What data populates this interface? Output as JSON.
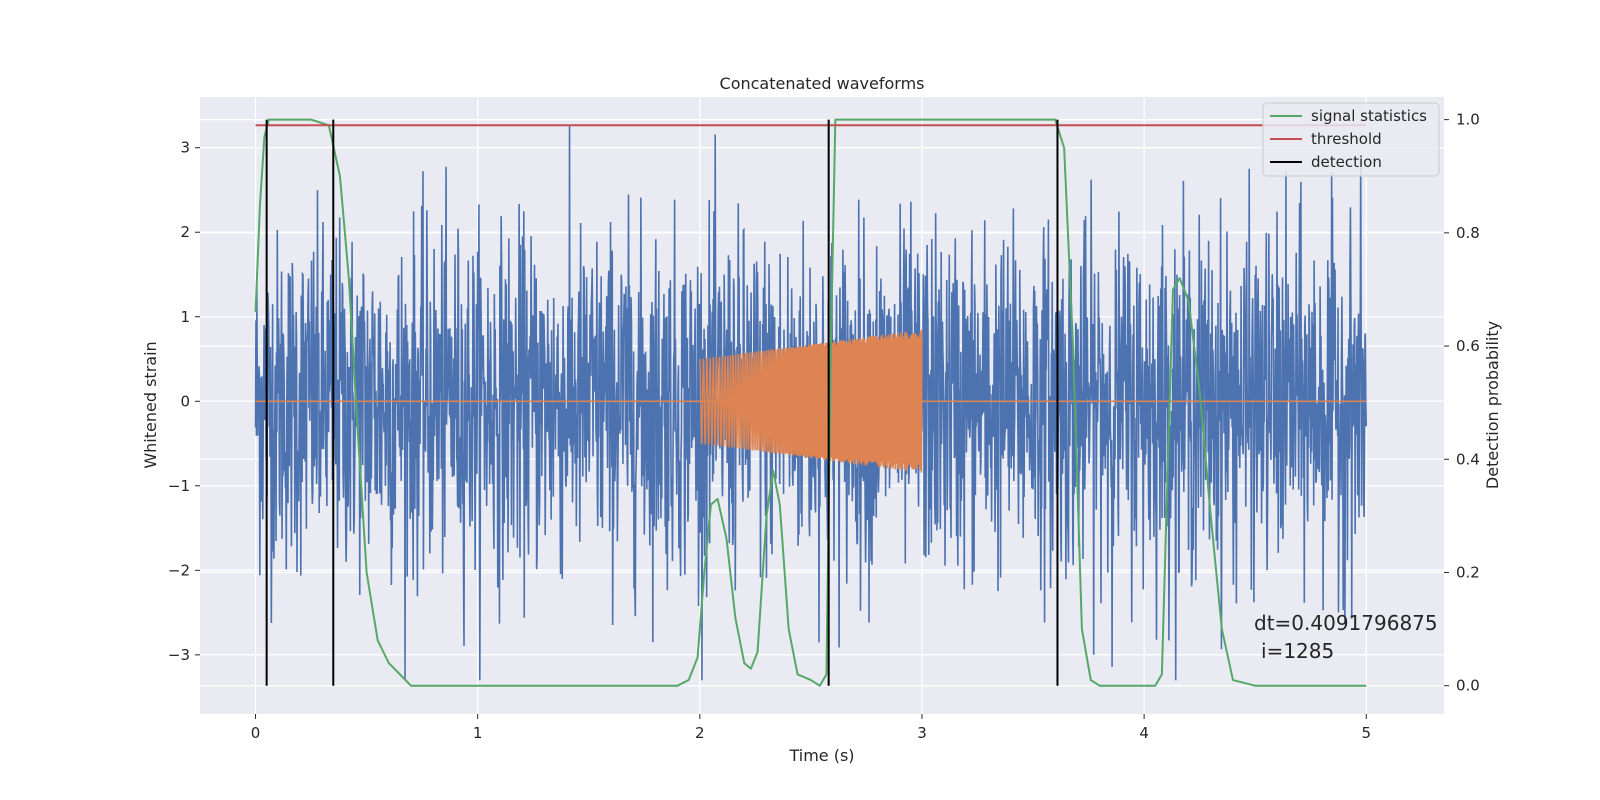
{
  "chart_data": {
    "type": "line",
    "title": "Concatenated waveforms",
    "xlabel": "Time (s)",
    "ylabel": "Whitened strain",
    "y2label": "Detection probability",
    "xlim": [
      -0.25,
      5.35
    ],
    "ylim": [
      -3.7,
      3.6
    ],
    "y2lim": [
      -0.05,
      1.04
    ],
    "x_ticks": [
      0,
      1,
      2,
      3,
      4,
      5
    ],
    "y_ticks": [
      -3,
      -2,
      -1,
      0,
      1,
      2,
      3
    ],
    "y2_ticks": [
      0.0,
      0.2,
      0.4,
      0.6,
      0.8,
      1.0
    ],
    "y2_tick_labels": [
      "0.0",
      "0.2",
      "0.4",
      "0.6",
      "0.8",
      "1.0"
    ],
    "grid": true,
    "legend_position": "top-right",
    "series": [
      {
        "name": "",
        "axis": "left",
        "color": "#4c72b0",
        "kind": "noise",
        "x_range": [
          0,
          5
        ],
        "typical_amplitude": 1.0,
        "max_abs": 3.3
      },
      {
        "name": "",
        "axis": "left",
        "color": "#dd8452",
        "kind": "chirp",
        "x_range": [
          2.0,
          3.0
        ],
        "amplitude_start": 0.5,
        "amplitude_end": 0.85,
        "baseline": 0
      },
      {
        "name": "signal statistics",
        "axis": "right",
        "color": "#55a868",
        "x": [
          0.0,
          0.02,
          0.04,
          0.06,
          0.1,
          0.25,
          0.33,
          0.38,
          0.42,
          0.46,
          0.5,
          0.55,
          0.6,
          0.65,
          0.7,
          0.8,
          1.9,
          1.95,
          1.99,
          2.02,
          2.05,
          2.08,
          2.12,
          2.16,
          2.2,
          2.23,
          2.26,
          2.3,
          2.33,
          2.36,
          2.4,
          2.44,
          2.5,
          2.54,
          2.57,
          2.59,
          2.61,
          2.65,
          3.6,
          3.64,
          3.68,
          3.72,
          3.76,
          3.8,
          4.05,
          4.08,
          4.1,
          4.13,
          4.16,
          4.2,
          4.25,
          4.3,
          4.35,
          4.4,
          4.5,
          5.0
        ],
        "y": [
          0.66,
          0.85,
          0.97,
          1.0,
          1.0,
          1.0,
          0.99,
          0.9,
          0.72,
          0.45,
          0.2,
          0.08,
          0.04,
          0.02,
          0.0,
          0.0,
          0.0,
          0.01,
          0.05,
          0.2,
          0.32,
          0.33,
          0.26,
          0.12,
          0.04,
          0.03,
          0.06,
          0.3,
          0.38,
          0.32,
          0.1,
          0.02,
          0.01,
          0.0,
          0.02,
          0.6,
          1.0,
          1.0,
          1.0,
          0.95,
          0.6,
          0.1,
          0.01,
          0.0,
          0.0,
          0.02,
          0.3,
          0.7,
          0.72,
          0.68,
          0.52,
          0.3,
          0.1,
          0.01,
          0.0,
          0.0
        ]
      },
      {
        "name": "threshold",
        "axis": "right",
        "color": "#c44e52",
        "x": [
          0,
          5
        ],
        "y": [
          0.99,
          0.99
        ]
      },
      {
        "name": "detection",
        "axis": "right",
        "color": "#000000",
        "kind": "vlines",
        "x": [
          0.05,
          0.35,
          2.58,
          3.61
        ],
        "ymin": 0.0,
        "ymax": 1.0
      }
    ],
    "annotations": [
      "dt=0.4091796875",
      "i=1285"
    ]
  }
}
